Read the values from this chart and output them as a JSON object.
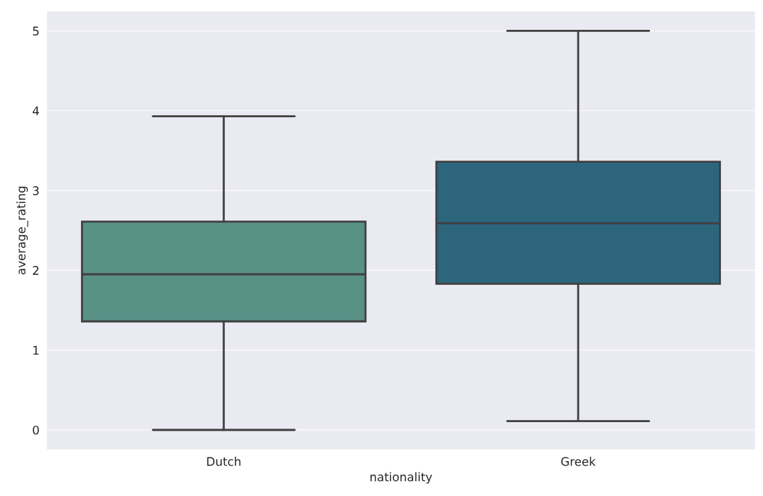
{
  "chart_data": {
    "type": "box",
    "xlabel": "nationality",
    "ylabel": "average_rating",
    "categories": [
      "Dutch",
      "Greek"
    ],
    "colors": [
      "#5a9187",
      "#2d667c"
    ],
    "boxes": [
      {
        "low": 0.0,
        "q1": 1.36,
        "median": 1.95,
        "q3": 2.61,
        "high": 3.93
      },
      {
        "low": 0.11,
        "q1": 1.83,
        "median": 2.59,
        "q3": 3.36,
        "high": 5.0
      }
    ],
    "ylim": [
      -0.25,
      5.25
    ],
    "yticks": [
      0,
      1,
      2,
      3,
      4,
      5
    ],
    "grid": "y"
  }
}
